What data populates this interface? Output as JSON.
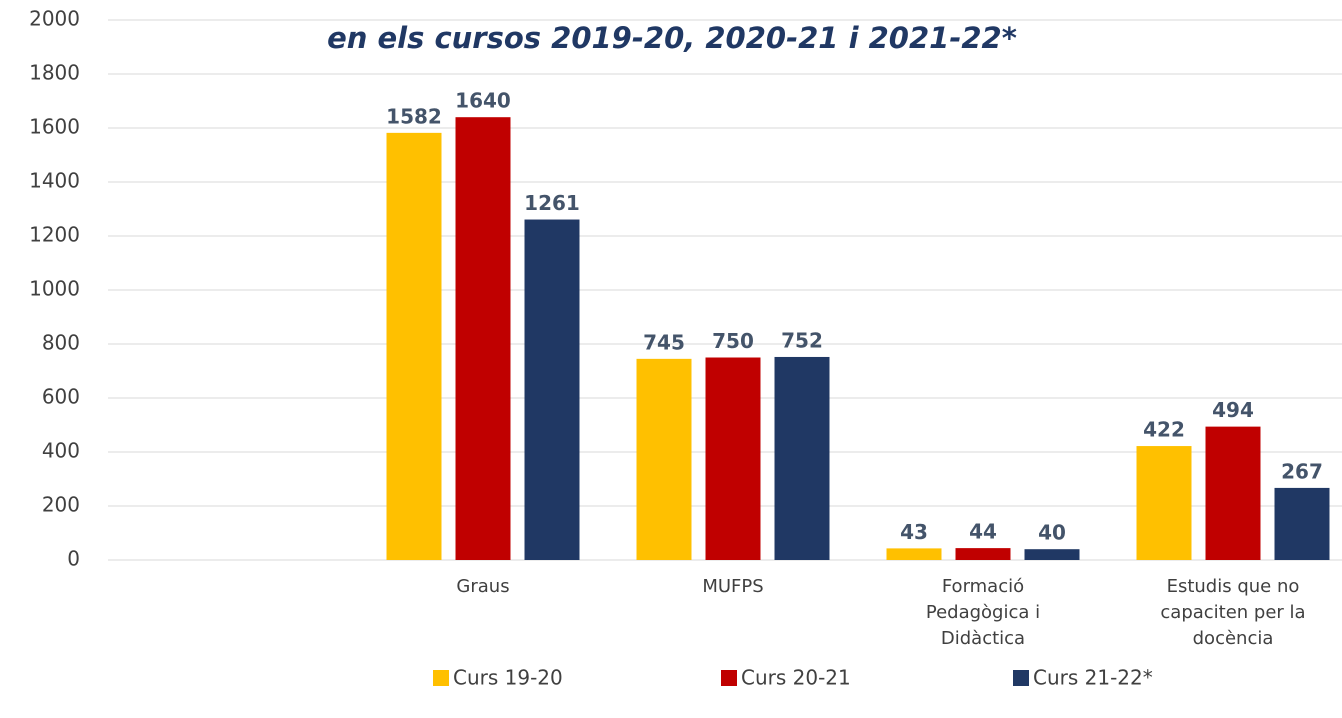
{
  "chart_data": {
    "type": "bar",
    "title": "en els cursos 2019-20, 2020-21 i 2021-22*",
    "categories": [
      null,
      "Graus",
      "MUFPS",
      "Formació Pedagògica i Didàctica",
      "Estudis que no capaciten per la docència"
    ],
    "series": [
      {
        "name": "Curs 19-20",
        "color": "#ffc000",
        "values": [
          null,
          1582,
          745,
          43,
          422
        ]
      },
      {
        "name": "Curs 20-21",
        "color": "#c00000",
        "values": [
          null,
          1640,
          750,
          44,
          494
        ]
      },
      {
        "name": "Curs 21-22*",
        "color": "#203864",
        "values": [
          null,
          1261,
          752,
          40,
          267
        ]
      }
    ],
    "ylim": [
      0,
      2000
    ],
    "yticks": [
      0,
      200,
      400,
      600,
      800,
      1000,
      1200,
      1400,
      1600,
      1800,
      2000
    ],
    "grid": true,
    "legend": "bottom"
  }
}
